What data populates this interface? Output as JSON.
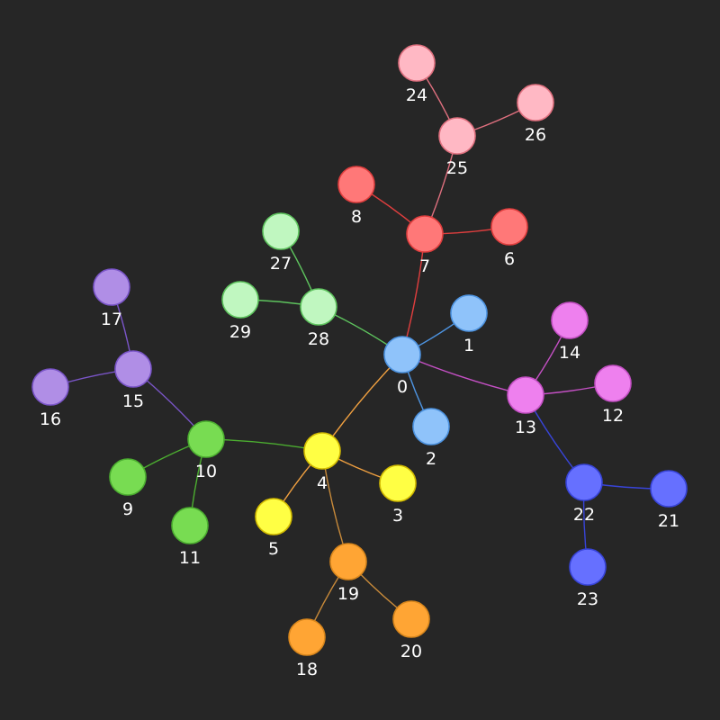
{
  "groups": {
    "blue": {
      "fill": "#8fc3fa",
      "stroke": "#4d93e0",
      "edge": "#4d93e0"
    },
    "red": {
      "fill": "#ff7878",
      "stroke": "#e03e3e",
      "edge": "#e03e3e"
    },
    "pink": {
      "fill": "#ffb8c4",
      "stroke": "#e0707f",
      "edge": "#e0707f"
    },
    "lightgreen": {
      "fill": "#c0f7c0",
      "stroke": "#5ec45e",
      "edge": "#5ec45e"
    },
    "green": {
      "fill": "#78dc52",
      "stroke": "#4cae30",
      "edge": "#4cae30"
    },
    "purple": {
      "fill": "#b08ee6",
      "stroke": "#7a55c8",
      "edge": "#7a55c8"
    },
    "yellow": {
      "fill": "#ffff44",
      "stroke": "#d2ba00",
      "edge": "#f0a040"
    },
    "orange": {
      "fill": "#ffa534",
      "stroke": "#d8861c",
      "edge": "#c88a3a"
    },
    "magenta": {
      "fill": "#ee80ee",
      "stroke": "#c550c5",
      "edge": "#c550c5"
    },
    "indigo": {
      "fill": "#6670ff",
      "stroke": "#3844d8",
      "edge": "#3844d8"
    }
  },
  "nodes": [
    {
      "id": "0",
      "label": "0",
      "group": "blue"
    },
    {
      "id": "1",
      "label": "1",
      "group": "blue"
    },
    {
      "id": "2",
      "label": "2",
      "group": "blue"
    },
    {
      "id": "3",
      "label": "3",
      "group": "yellow"
    },
    {
      "id": "4",
      "label": "4",
      "group": "yellow"
    },
    {
      "id": "5",
      "label": "5",
      "group": "yellow"
    },
    {
      "id": "6",
      "label": "6",
      "group": "red"
    },
    {
      "id": "7",
      "label": "7",
      "group": "red"
    },
    {
      "id": "8",
      "label": "8",
      "group": "red"
    },
    {
      "id": "9",
      "label": "9",
      "group": "green"
    },
    {
      "id": "10",
      "label": "10",
      "group": "green"
    },
    {
      "id": "11",
      "label": "11",
      "group": "green"
    },
    {
      "id": "12",
      "label": "12",
      "group": "magenta"
    },
    {
      "id": "13",
      "label": "13",
      "group": "magenta"
    },
    {
      "id": "14",
      "label": "14",
      "group": "magenta"
    },
    {
      "id": "15",
      "label": "15",
      "group": "purple"
    },
    {
      "id": "16",
      "label": "16",
      "group": "purple"
    },
    {
      "id": "17",
      "label": "17",
      "group": "purple"
    },
    {
      "id": "18",
      "label": "18",
      "group": "orange"
    },
    {
      "id": "19",
      "label": "19",
      "group": "orange"
    },
    {
      "id": "20",
      "label": "20",
      "group": "orange"
    },
    {
      "id": "21",
      "label": "21",
      "group": "indigo"
    },
    {
      "id": "22",
      "label": "22",
      "group": "indigo"
    },
    {
      "id": "23",
      "label": "23",
      "group": "indigo"
    },
    {
      "id": "24",
      "label": "24",
      "group": "pink"
    },
    {
      "id": "25",
      "label": "25",
      "group": "pink"
    },
    {
      "id": "26",
      "label": "26",
      "group": "pink"
    },
    {
      "id": "27",
      "label": "27",
      "group": "lightgreen"
    },
    {
      "id": "28",
      "label": "28",
      "group": "lightgreen"
    },
    {
      "id": "29",
      "label": "29",
      "group": "lightgreen"
    }
  ],
  "edges": [
    {
      "from": "0",
      "to": "1",
      "group": "blue"
    },
    {
      "from": "0",
      "to": "2",
      "group": "blue"
    },
    {
      "from": "0",
      "to": "7",
      "group": "red"
    },
    {
      "from": "0",
      "to": "28",
      "group": "lightgreen"
    },
    {
      "from": "0",
      "to": "13",
      "group": "magenta"
    },
    {
      "from": "0",
      "to": "4",
      "group": "yellow"
    },
    {
      "from": "7",
      "to": "8",
      "group": "red"
    },
    {
      "from": "7",
      "to": "6",
      "group": "red"
    },
    {
      "from": "7",
      "to": "25",
      "group": "pink"
    },
    {
      "from": "25",
      "to": "24",
      "group": "pink"
    },
    {
      "from": "25",
      "to": "26",
      "group": "pink"
    },
    {
      "from": "28",
      "to": "27",
      "group": "lightgreen"
    },
    {
      "from": "28",
      "to": "29",
      "group": "lightgreen"
    },
    {
      "from": "13",
      "to": "14",
      "group": "magenta"
    },
    {
      "from": "13",
      "to": "12",
      "group": "magenta"
    },
    {
      "from": "13",
      "to": "22",
      "group": "indigo"
    },
    {
      "from": "22",
      "to": "21",
      "group": "indigo"
    },
    {
      "from": "22",
      "to": "23",
      "group": "indigo"
    },
    {
      "from": "4",
      "to": "3",
      "group": "yellow"
    },
    {
      "from": "4",
      "to": "5",
      "group": "yellow"
    },
    {
      "from": "4",
      "to": "19",
      "group": "orange"
    },
    {
      "from": "4",
      "to": "10",
      "group": "green"
    },
    {
      "from": "19",
      "to": "18",
      "group": "orange"
    },
    {
      "from": "19",
      "to": "20",
      "group": "orange"
    },
    {
      "from": "10",
      "to": "9",
      "group": "green"
    },
    {
      "from": "10",
      "to": "11",
      "group": "green"
    },
    {
      "from": "10",
      "to": "15",
      "group": "purple"
    },
    {
      "from": "15",
      "to": "16",
      "group": "purple"
    },
    {
      "from": "15",
      "to": "17",
      "group": "purple"
    }
  ]
}
